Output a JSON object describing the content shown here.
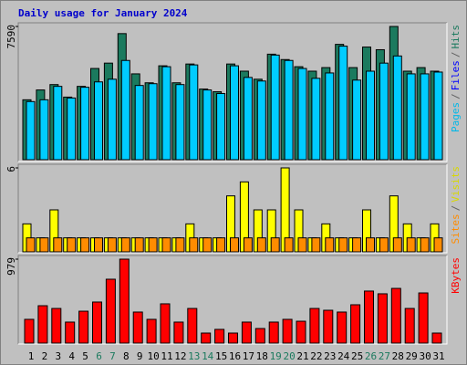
{
  "title": "Daily usage for January 2024",
  "chart_data": [
    {
      "type": "bar",
      "ylim": [
        0,
        7590
      ],
      "yticks": [
        7590
      ],
      "series": [
        {
          "color": "#1b7a5e",
          "values": [
            3413,
            3973,
            4279,
            3566,
            4177,
            5196,
            5502,
            7183,
            4890,
            4381,
            5349,
            4381,
            5451,
            4024,
            3871,
            5451,
            5043,
            4585,
            6011,
            5705,
            5298,
            5043,
            5247,
            6571,
            5247,
            6418,
            6266,
            7590,
            5043,
            5247,
            5043
          ]
        },
        {
          "color": "#00ccff",
          "values": [
            3311,
            3413,
            4177,
            3515,
            4126,
            4432,
            4585,
            5654,
            4228,
            4330,
            5298,
            4279,
            5400,
            3973,
            3770,
            5349,
            4687,
            4483,
            5960,
            5654,
            5196,
            4636,
            4941,
            6469,
            4534,
            5043,
            5502,
            5909,
            4890,
            4890,
            4992
          ]
        }
      ],
      "legend": [
        {
          "name": "Pages",
          "color": "#00b8e8"
        },
        {
          "name": "Files",
          "color": "#0000ff"
        },
        {
          "name": "Hits",
          "color": "#1b7a5e"
        }
      ],
      "legend_separator": "/"
    },
    {
      "type": "bar",
      "ylim": [
        0,
        6
      ],
      "yticks": [
        6
      ],
      "series": [
        {
          "color": "#ffff00",
          "values": [
            2,
            1,
            3,
            1,
            1,
            1,
            1,
            1,
            1,
            1,
            1,
            1,
            2,
            1,
            1,
            4,
            5,
            3,
            3,
            6,
            3,
            1,
            2,
            1,
            1,
            3,
            1,
            4,
            2,
            1,
            2
          ]
        },
        {
          "color": "#ff8c00",
          "values": [
            1,
            1,
            1,
            1,
            1,
            1,
            1,
            1,
            1,
            1,
            1,
            1,
            1,
            1,
            1,
            1,
            1,
            1,
            1,
            1,
            1,
            1,
            1,
            1,
            1,
            1,
            1,
            1,
            1,
            1,
            1
          ]
        }
      ],
      "legend": [
        {
          "name": "Sites",
          "color": "#ff8c00"
        },
        {
          "name": "Visits",
          "color": "#d8d800"
        }
      ],
      "legend_separator": "/"
    },
    {
      "type": "bar",
      "ylim": [
        0,
        979
      ],
      "yticks": [
        979
      ],
      "series": [
        {
          "color": "#ff0000",
          "values": [
            277,
            436,
            404,
            245,
            372,
            479,
            745,
            979,
            362,
            277,
            458,
            245,
            404,
            117,
            160,
            117,
            245,
            170,
            245,
            277,
            255,
            404,
            383,
            362,
            447,
            607,
            575,
            638,
            404,
            585,
            117
          ]
        }
      ],
      "legend": [
        {
          "name": "KBytes",
          "color": "#ff0000"
        }
      ],
      "legend_separator": "/",
      "categories": [
        "1",
        "2",
        "3",
        "4",
        "5",
        "6",
        "7",
        "8",
        "9",
        "10",
        "11",
        "12",
        "13",
        "14",
        "15",
        "16",
        "17",
        "18",
        "19",
        "20",
        "21",
        "22",
        "23",
        "24",
        "25",
        "26",
        "27",
        "28",
        "29",
        "30",
        "31"
      ],
      "category_colors": [
        "#000",
        "#000",
        "#000",
        "#000",
        "#000",
        "#1b7a5e",
        "#1b7a5e",
        "#000",
        "#000",
        "#000",
        "#000",
        "#000",
        "#1b7a5e",
        "#1b7a5e",
        "#000",
        "#000",
        "#000",
        "#000",
        "#1b7a5e",
        "#1b7a5e",
        "#000",
        "#000",
        "#000",
        "#000",
        "#000",
        "#1b7a5e",
        "#1b7a5e",
        "#000",
        "#000",
        "#000",
        "#000"
      ]
    }
  ]
}
